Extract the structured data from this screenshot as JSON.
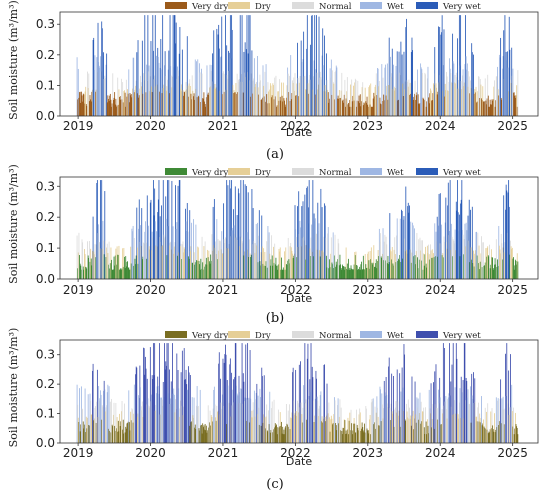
{
  "figure": {
    "panels": [
      {
        "id": "a",
        "label": "(a)",
        "ylabel": "Soil moisture (m³/m³)",
        "xlabel": "Date",
        "legend": [
          {
            "name": "Very dry",
            "color": "#9b5a1a"
          },
          {
            "name": "Dry",
            "color": "#e6cf97"
          },
          {
            "name": "Normal",
            "color": "#dcdcdc"
          },
          {
            "name": "Wet",
            "color": "#9fb7e3"
          },
          {
            "name": "Very wet",
            "color": "#2b5cb8"
          }
        ]
      },
      {
        "id": "b",
        "label": "(b)",
        "ylabel": "Soil moisture (m³/m³)",
        "xlabel": "Date",
        "legend": [
          {
            "name": "Very dry",
            "color": "#3f8a36"
          },
          {
            "name": "Dry",
            "color": "#e6cf97"
          },
          {
            "name": "Normal",
            "color": "#dcdcdc"
          },
          {
            "name": "Wet",
            "color": "#9fb7e3"
          },
          {
            "name": "Very wet",
            "color": "#2b5cb8"
          }
        ]
      },
      {
        "id": "c",
        "label": "(c)",
        "ylabel": "Soil moisture (m³/m³)",
        "xlabel": "Date",
        "legend": [
          {
            "name": "Very dry",
            "color": "#7a6e22"
          },
          {
            "name": "Dry",
            "color": "#e6cf97"
          },
          {
            "name": "Normal",
            "color": "#dcdcdc"
          },
          {
            "name": "Wet",
            "color": "#9fb7e3"
          },
          {
            "name": "Very wet",
            "color": "#3f4fae"
          }
        ]
      }
    ]
  },
  "chart_data": [
    {
      "type": "bar",
      "panel": "a",
      "xlabel": "Date",
      "ylabel": "Soil moisture (m³/m³)",
      "x_ticks": [
        "2019",
        "2020",
        "2021",
        "2022",
        "2023",
        "2024",
        "2025"
      ],
      "y_ticks": [
        "0.0",
        "0.1",
        "0.2",
        "0.3"
      ],
      "xlim": [
        2018.75,
        2025.35
      ],
      "ylim": [
        0,
        0.34
      ],
      "grid": false,
      "legend_position": "top",
      "anchors": [
        [
          2019.0,
          0.14
        ],
        [
          2019.15,
          0.12
        ],
        [
          2019.3,
          0.3
        ],
        [
          2019.45,
          0.11
        ],
        [
          2019.65,
          0.09
        ],
        [
          2019.85,
          0.22
        ],
        [
          2020.0,
          0.27
        ],
        [
          2020.2,
          0.29
        ],
        [
          2020.4,
          0.26
        ],
        [
          2020.55,
          0.18
        ],
        [
          2020.75,
          0.1
        ],
        [
          2020.9,
          0.23
        ],
        [
          2021.1,
          0.26
        ],
        [
          2021.3,
          0.28
        ],
        [
          2021.5,
          0.2
        ],
        [
          2021.7,
          0.11
        ],
        [
          2021.85,
          0.09
        ],
        [
          2022.0,
          0.21
        ],
        [
          2022.15,
          0.25
        ],
        [
          2022.3,
          0.28
        ],
        [
          2022.45,
          0.14
        ],
        [
          2022.65,
          0.1
        ],
        [
          2022.85,
          0.09
        ],
        [
          2023.0,
          0.08
        ],
        [
          2023.15,
          0.14
        ],
        [
          2023.3,
          0.21
        ],
        [
          2023.42,
          0.16
        ],
        [
          2023.5,
          0.26
        ],
        [
          2023.65,
          0.15
        ],
        [
          2023.8,
          0.1
        ],
        [
          2024.0,
          0.23
        ],
        [
          2024.15,
          0.29
        ],
        [
          2024.3,
          0.32
        ],
        [
          2024.45,
          0.18
        ],
        [
          2024.6,
          0.1
        ],
        [
          2024.75,
          0.09
        ],
        [
          2024.88,
          0.25
        ],
        [
          2024.95,
          0.28
        ],
        [
          2025.0,
          0.13
        ],
        [
          2025.05,
          0.11
        ]
      ]
    },
    {
      "type": "bar",
      "panel": "b",
      "xlabel": "Date",
      "ylabel": "Soil moisture (m³/m³)",
      "x_ticks": [
        "2019",
        "2020",
        "2021",
        "2022",
        "2023",
        "2024",
        "2025"
      ],
      "y_ticks": [
        "0.0",
        "0.1",
        "0.2",
        "0.3"
      ],
      "xlim": [
        2018.75,
        2025.35
      ],
      "ylim": [
        0,
        0.33
      ],
      "grid": false,
      "legend_position": "top",
      "anchors": [
        [
          2019.0,
          0.12
        ],
        [
          2019.15,
          0.1
        ],
        [
          2019.3,
          0.3
        ],
        [
          2019.45,
          0.09
        ],
        [
          2019.65,
          0.08
        ],
        [
          2019.85,
          0.2
        ],
        [
          2020.0,
          0.27
        ],
        [
          2020.2,
          0.29
        ],
        [
          2020.4,
          0.25
        ],
        [
          2020.55,
          0.16
        ],
        [
          2020.75,
          0.09
        ],
        [
          2020.9,
          0.22
        ],
        [
          2021.1,
          0.24
        ],
        [
          2021.3,
          0.26
        ],
        [
          2021.5,
          0.18
        ],
        [
          2021.7,
          0.09
        ],
        [
          2021.85,
          0.07
        ],
        [
          2022.0,
          0.2
        ],
        [
          2022.15,
          0.24
        ],
        [
          2022.3,
          0.27
        ],
        [
          2022.45,
          0.13
        ],
        [
          2022.65,
          0.08
        ],
        [
          2022.85,
          0.07
        ],
        [
          2023.0,
          0.07
        ],
        [
          2023.15,
          0.13
        ],
        [
          2023.3,
          0.19
        ],
        [
          2023.42,
          0.14
        ],
        [
          2023.5,
          0.24
        ],
        [
          2023.65,
          0.13
        ],
        [
          2023.8,
          0.08
        ],
        [
          2024.0,
          0.22
        ],
        [
          2024.15,
          0.27
        ],
        [
          2024.3,
          0.29
        ],
        [
          2024.45,
          0.16
        ],
        [
          2024.6,
          0.09
        ],
        [
          2024.75,
          0.08
        ],
        [
          2024.88,
          0.23
        ],
        [
          2024.95,
          0.28
        ],
        [
          2025.0,
          0.09
        ],
        [
          2025.05,
          0.06
        ]
      ]
    },
    {
      "type": "bar",
      "panel": "c",
      "xlabel": "Date",
      "ylabel": "Soil moisture (m³/m³)",
      "x_ticks": [
        "2019",
        "2020",
        "2021",
        "2022",
        "2023",
        "2024",
        "2025"
      ],
      "y_ticks": [
        "0.0",
        "0.1",
        "0.2",
        "0.3"
      ],
      "xlim": [
        2018.75,
        2025.35
      ],
      "ylim": [
        0,
        0.35
      ],
      "grid": false,
      "legend_position": "top",
      "anchors": [
        [
          2019.0,
          0.15
        ],
        [
          2019.15,
          0.13
        ],
        [
          2019.3,
          0.32
        ],
        [
          2019.45,
          0.11
        ],
        [
          2019.65,
          0.1
        ],
        [
          2019.85,
          0.24
        ],
        [
          2020.0,
          0.29
        ],
        [
          2020.2,
          0.31
        ],
        [
          2020.4,
          0.28
        ],
        [
          2020.55,
          0.18
        ],
        [
          2020.75,
          0.11
        ],
        [
          2020.9,
          0.23
        ],
        [
          2021.1,
          0.25
        ],
        [
          2021.3,
          0.27
        ],
        [
          2021.5,
          0.2
        ],
        [
          2021.7,
          0.11
        ],
        [
          2021.85,
          0.09
        ],
        [
          2022.0,
          0.22
        ],
        [
          2022.15,
          0.26
        ],
        [
          2022.3,
          0.29
        ],
        [
          2022.45,
          0.15
        ],
        [
          2022.65,
          0.1
        ],
        [
          2022.85,
          0.09
        ],
        [
          2023.0,
          0.09
        ],
        [
          2023.15,
          0.16
        ],
        [
          2023.3,
          0.23
        ],
        [
          2023.42,
          0.17
        ],
        [
          2023.5,
          0.25
        ],
        [
          2023.65,
          0.15
        ],
        [
          2023.8,
          0.1
        ],
        [
          2024.0,
          0.25
        ],
        [
          2024.15,
          0.3
        ],
        [
          2024.3,
          0.34
        ],
        [
          2024.45,
          0.19
        ],
        [
          2024.6,
          0.1
        ],
        [
          2024.75,
          0.09
        ],
        [
          2024.88,
          0.24
        ],
        [
          2024.95,
          0.29
        ],
        [
          2025.0,
          0.11
        ],
        [
          2025.05,
          0.09
        ]
      ]
    }
  ]
}
